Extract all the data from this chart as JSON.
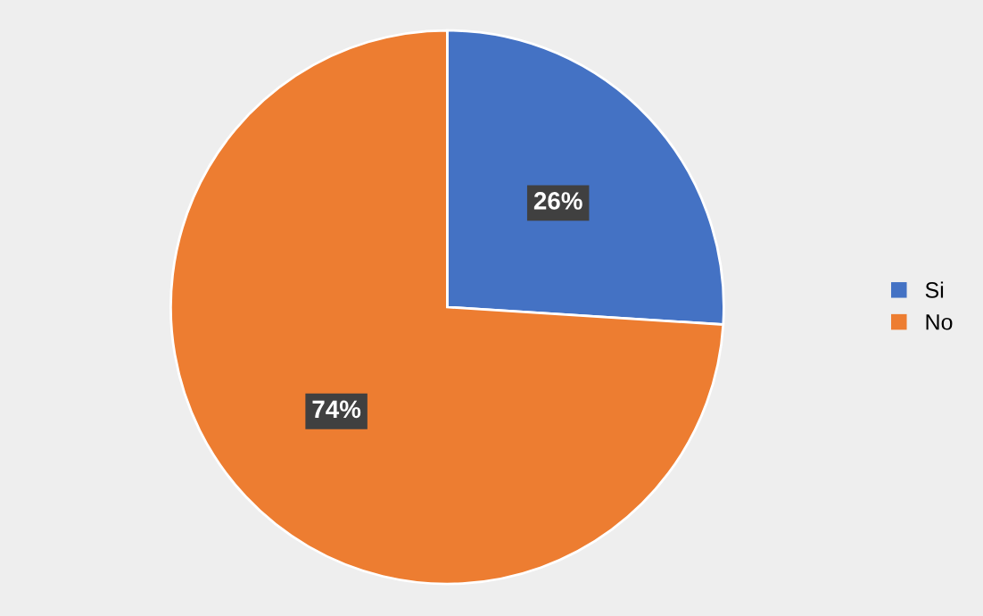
{
  "chart_data": {
    "type": "pie",
    "categories": [
      "Si",
      "No"
    ],
    "values": [
      26,
      74
    ],
    "colors": [
      "#4472c4",
      "#ed7d31"
    ],
    "value_labels": [
      "26%",
      "74%"
    ],
    "legend": "right"
  }
}
